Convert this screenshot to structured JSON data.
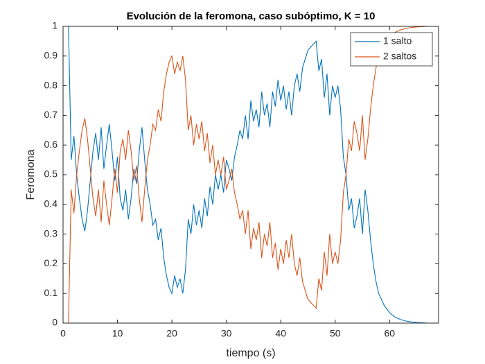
{
  "chart_data": {
    "type": "line",
    "title": "Evolución de la feromona, caso subóptimo, K = 10",
    "xlabel": "tiempo (s)",
    "ylabel": "Feromona",
    "x": [
      0,
      0.5,
      1,
      1.5,
      2,
      2.5,
      3,
      3.5,
      4,
      4.5,
      5,
      5.5,
      6,
      6.5,
      7,
      7.5,
      8,
      8.5,
      9,
      9.5,
      10,
      10.5,
      11,
      11.5,
      12,
      12.5,
      13,
      13.5,
      14,
      14.5,
      15,
      15.5,
      16,
      16.5,
      17,
      17.5,
      18,
      18.5,
      19,
      19.5,
      20,
      20.5,
      21,
      21.5,
      22,
      22.5,
      23,
      23.5,
      24,
      24.5,
      25,
      25.5,
      26,
      26.5,
      27,
      27.5,
      28,
      28.5,
      29,
      29.5,
      30,
      30.5,
      31,
      31.5,
      32,
      32.5,
      33,
      33.5,
      34,
      34.5,
      35,
      35.5,
      36,
      36.5,
      37,
      37.5,
      38,
      38.5,
      39,
      39.5,
      40,
      40.5,
      41,
      41.5,
      42,
      42.5,
      43,
      43.5,
      44,
      44.5,
      45,
      45.5,
      46,
      46.5,
      47,
      47.5,
      48,
      48.5,
      49,
      49.5,
      50,
      50.5,
      51,
      51.5,
      52,
      52.5,
      53,
      53.5,
      54,
      54.5,
      55,
      55.5,
      56,
      56.5,
      57,
      57.5,
      58,
      59,
      60,
      61,
      62,
      63,
      64,
      65,
      66,
      67,
      68,
      69
    ],
    "series": [
      {
        "name": "1 salto",
        "color": "#0072BD",
        "values": [
          1,
          1,
          1,
          0.55,
          0.63,
          0.5,
          0.42,
          0.35,
          0.31,
          0.38,
          0.48,
          0.58,
          0.64,
          0.55,
          0.66,
          0.52,
          0.6,
          0.67,
          0.58,
          0.48,
          0.56,
          0.42,
          0.38,
          0.45,
          0.35,
          0.42,
          0.52,
          0.47,
          0.58,
          0.66,
          0.55,
          0.45,
          0.4,
          0.33,
          0.35,
          0.28,
          0.32,
          0.22,
          0.16,
          0.12,
          0.1,
          0.16,
          0.12,
          0.15,
          0.1,
          0.18,
          0.35,
          0.3,
          0.4,
          0.33,
          0.38,
          0.32,
          0.42,
          0.36,
          0.46,
          0.4,
          0.5,
          0.45,
          0.5,
          0.44,
          0.55,
          0.52,
          0.48,
          0.56,
          0.6,
          0.65,
          0.62,
          0.7,
          0.62,
          0.75,
          0.68,
          0.72,
          0.66,
          0.78,
          0.7,
          0.74,
          0.66,
          0.78,
          0.73,
          0.82,
          0.75,
          0.8,
          0.72,
          0.78,
          0.7,
          0.8,
          0.84,
          0.78,
          0.86,
          0.89,
          0.92,
          0.93,
          0.94,
          0.95,
          0.85,
          0.89,
          0.76,
          0.84,
          0.7,
          0.8,
          0.76,
          0.8,
          0.72,
          0.56,
          0.5,
          0.38,
          0.42,
          0.32,
          0.36,
          0.42,
          0.3,
          0.45,
          0.38,
          0.28,
          0.2,
          0.14,
          0.1,
          0.06,
          0.035,
          0.02,
          0.012,
          0.007,
          0.004,
          0.002,
          0.001,
          0,
          0,
          0
        ]
      },
      {
        "name": "2 saltos",
        "color": "#D95319",
        "values": [
          0,
          0,
          0,
          0.45,
          0.37,
          0.5,
          0.58,
          0.65,
          0.69,
          0.62,
          0.52,
          0.42,
          0.36,
          0.45,
          0.34,
          0.48,
          0.4,
          0.33,
          0.42,
          0.52,
          0.44,
          0.58,
          0.62,
          0.55,
          0.65,
          0.58,
          0.48,
          0.53,
          0.42,
          0.34,
          0.45,
          0.55,
          0.6,
          0.67,
          0.65,
          0.72,
          0.68,
          0.78,
          0.84,
          0.88,
          0.9,
          0.84,
          0.88,
          0.85,
          0.9,
          0.82,
          0.65,
          0.7,
          0.6,
          0.67,
          0.62,
          0.68,
          0.58,
          0.64,
          0.54,
          0.6,
          0.5,
          0.55,
          0.5,
          0.56,
          0.45,
          0.48,
          0.52,
          0.44,
          0.4,
          0.35,
          0.38,
          0.3,
          0.38,
          0.25,
          0.32,
          0.28,
          0.34,
          0.22,
          0.3,
          0.26,
          0.34,
          0.22,
          0.27,
          0.18,
          0.25,
          0.2,
          0.28,
          0.22,
          0.3,
          0.2,
          0.16,
          0.22,
          0.14,
          0.11,
          0.08,
          0.07,
          0.06,
          0.05,
          0.15,
          0.11,
          0.24,
          0.16,
          0.3,
          0.2,
          0.24,
          0.2,
          0.28,
          0.44,
          0.5,
          0.62,
          0.58,
          0.68,
          0.64,
          0.58,
          0.7,
          0.55,
          0.62,
          0.72,
          0.8,
          0.86,
          0.9,
          0.94,
          0.965,
          0.98,
          0.988,
          0.993,
          0.996,
          0.998,
          0.999,
          1,
          1,
          1
        ]
      }
    ],
    "xlim": [
      0,
      69
    ],
    "ylim": [
      0,
      1
    ],
    "xticks": [
      0,
      10,
      20,
      30,
      40,
      50,
      60
    ],
    "yticks": [
      0,
      0.1,
      0.2,
      0.3,
      0.4,
      0.5,
      0.6,
      0.7,
      0.8,
      0.9,
      1
    ],
    "legend": "northeast"
  }
}
